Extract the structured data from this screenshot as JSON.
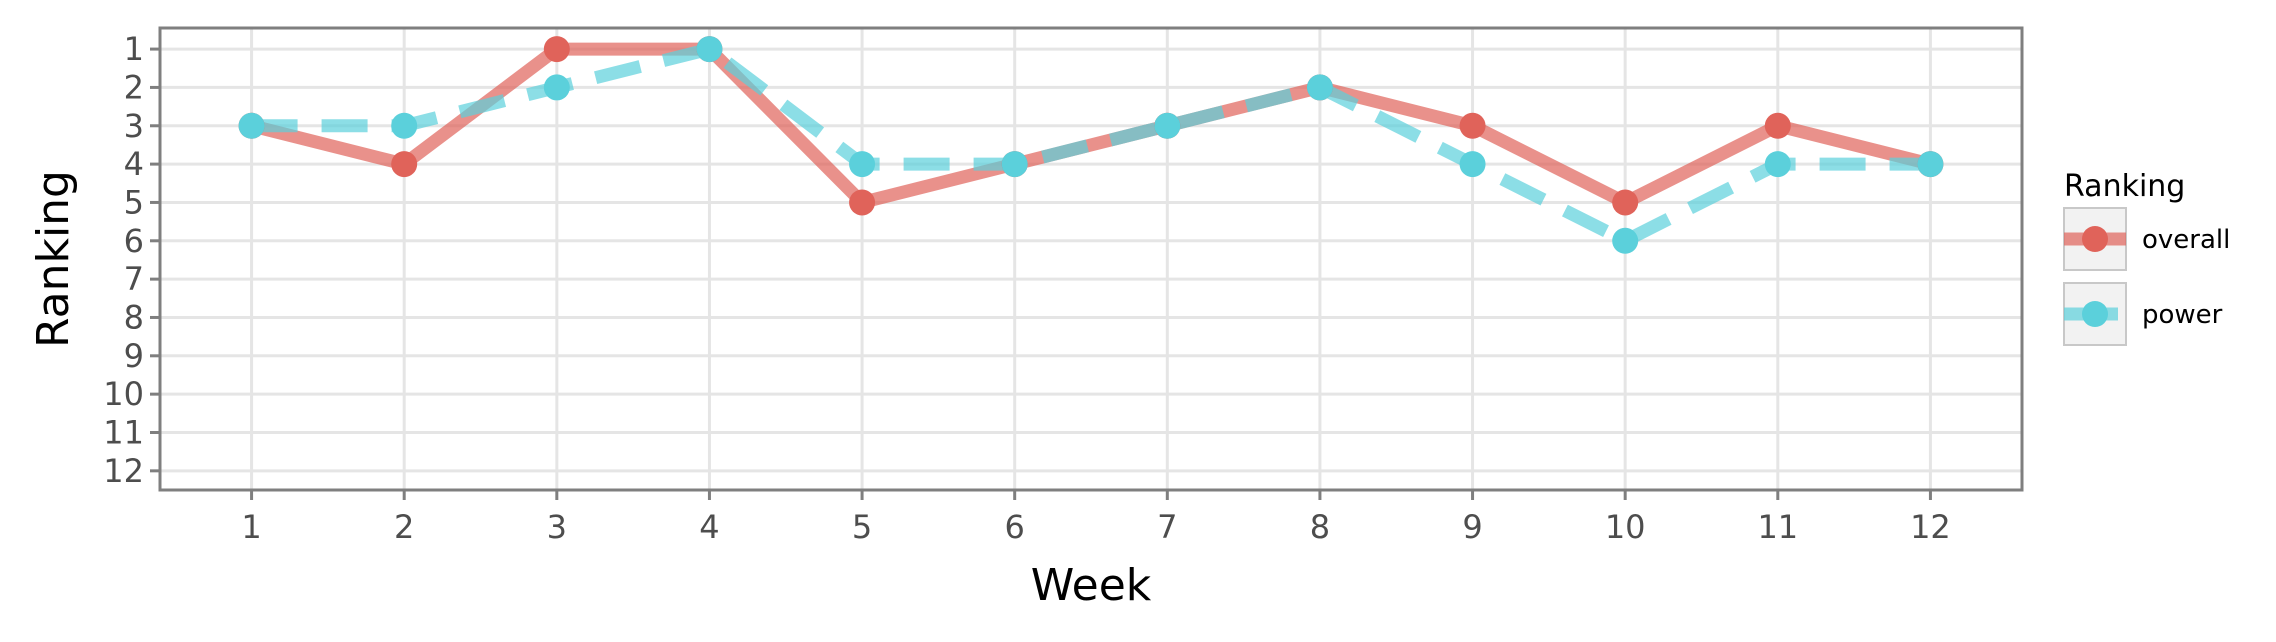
{
  "chart_data": {
    "type": "line",
    "x": [
      1,
      2,
      3,
      4,
      5,
      6,
      7,
      8,
      9,
      10,
      11,
      12
    ],
    "xlabel": "Week",
    "ylabel": "Ranking",
    "xlim": [
      0.4,
      12.6
    ],
    "ylim": [
      12.5,
      0.45
    ],
    "y_reversed": true,
    "xticks": [
      "1",
      "2",
      "3",
      "4",
      "5",
      "6",
      "7",
      "8",
      "9",
      "10",
      "11",
      "12"
    ],
    "yticks": [
      "1",
      "2",
      "3",
      "4",
      "5",
      "6",
      "7",
      "8",
      "9",
      "10",
      "11",
      "12"
    ],
    "grid": true,
    "legend": {
      "title": "Ranking",
      "placement": "right"
    },
    "series": [
      {
        "name": "overall",
        "values": [
          3,
          4,
          1,
          1,
          5,
          4,
          3,
          2,
          3,
          5,
          3,
          4
        ],
        "color": "#e0635a",
        "line_style": "solid"
      },
      {
        "name": "power",
        "values": [
          3,
          3,
          2,
          1,
          4,
          4,
          3,
          2,
          4,
          6,
          4,
          4
        ],
        "color": "#5bd0db",
        "line_style": "dashed"
      }
    ]
  }
}
